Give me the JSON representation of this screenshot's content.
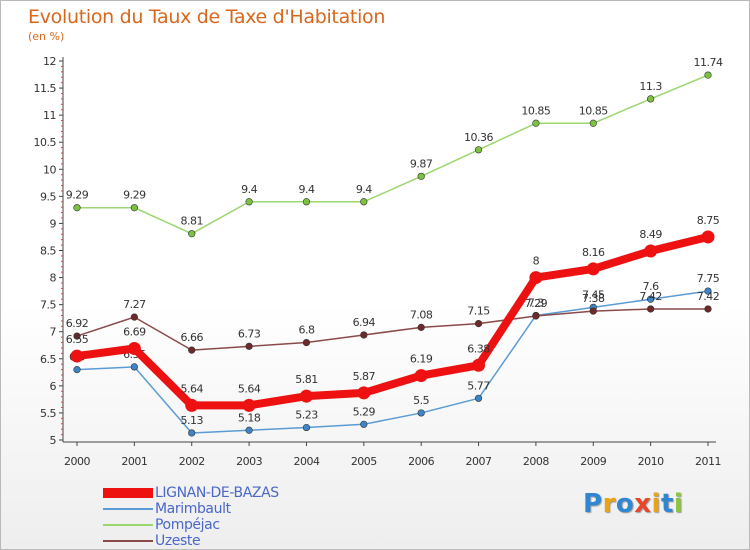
{
  "title": "Evolution du Taux de Taxe d'Habitation",
  "unit": "(en %)",
  "logo": {
    "text": "Proxiti",
    "colors": [
      "#2e86d4",
      "#e8a316",
      "#2e86d4",
      "#e8452b",
      "#e8a316",
      "#2e86d4",
      "#8cc43d"
    ]
  },
  "chart_data": {
    "type": "line",
    "x": [
      "2000",
      "2001",
      "2002",
      "2003",
      "2004",
      "2005",
      "2006",
      "2007",
      "2008",
      "2009",
      "2010",
      "2011"
    ],
    "ylim": [
      5,
      12
    ],
    "yticks": [
      "5",
      "5.5",
      "6",
      "6.5",
      "7",
      "7.5",
      "8",
      "8.5",
      "9",
      "9.5",
      "10",
      "10.5",
      "11",
      "11.5",
      "12"
    ],
    "grid": false,
    "legend_position": "bottom-left",
    "series": [
      {
        "name": "Marimbault",
        "color": "#5b9bd5",
        "marker": "#3d85c6",
        "values": [
          6.3,
          6.35,
          5.13,
          5.18,
          5.23,
          5.29,
          5.5,
          5.77,
          7.3,
          7.45,
          7.6,
          7.75
        ],
        "labels": [
          "6.3",
          "6.35",
          "5.13",
          "5.18",
          "5.23",
          "5.29",
          "5.5",
          "5.77",
          "7.3",
          "7.45",
          "7.6",
          "7.75"
        ]
      },
      {
        "name": "Pompéjac",
        "color": "#9bd66f",
        "marker": "#7cc23f",
        "values": [
          9.29,
          9.29,
          8.81,
          9.4,
          9.4,
          9.4,
          9.87,
          10.36,
          10.85,
          10.85,
          11.3,
          11.74
        ],
        "labels": [
          "9.29",
          "9.29",
          "8.81",
          "9.4",
          "9.4",
          "9.4",
          "9.87",
          "10.36",
          "10.85",
          "10.85",
          "11.3",
          "11.74"
        ]
      },
      {
        "name": "Uzeste",
        "color": "#8b4a4a",
        "marker": "#6e2a2a",
        "values": [
          6.92,
          7.27,
          6.66,
          6.73,
          6.8,
          6.94,
          7.08,
          7.15,
          7.29,
          7.38,
          7.42,
          7.42
        ],
        "labels": [
          "6.92",
          "7.27",
          "6.66",
          "6.73",
          "6.8",
          "6.94",
          "7.08",
          "7.15",
          "7.29",
          "7.38",
          "7.42",
          "7.42"
        ]
      },
      {
        "name": "LIGNAN-DE-BAZAS",
        "color": "#ee1111",
        "marker": "#ee1111",
        "values": [
          6.55,
          6.69,
          5.64,
          5.64,
          5.81,
          5.87,
          6.19,
          6.38,
          8,
          8.16,
          8.49,
          8.75
        ],
        "labels": [
          "6.55",
          "6.69",
          "5.64",
          "5.64",
          "5.81",
          "5.87",
          "6.19",
          "6.38",
          "8",
          "8.16",
          "8.49",
          "8.75"
        ]
      }
    ],
    "legend": [
      "LIGNAN-DE-BAZAS",
      "Marimbault",
      "Pompéjac",
      "Uzeste"
    ]
  }
}
